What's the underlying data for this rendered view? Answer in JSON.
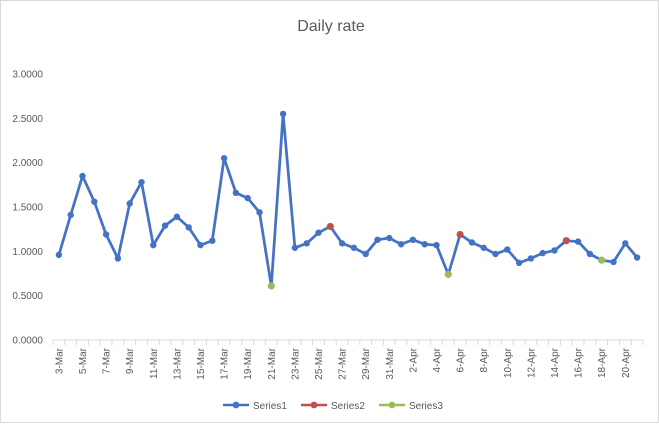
{
  "chart_data": {
    "type": "line",
    "title": "Daily rate",
    "xlabel": "",
    "ylabel": "",
    "ylim": [
      0,
      3
    ],
    "y_ticks": [
      "0.0000",
      "0.5000",
      "1.0000",
      "1.5000",
      "2.0000",
      "2.5000",
      "3.0000"
    ],
    "grid": false,
    "legend_position": "bottom",
    "categories": [
      "3-Mar",
      "4-Mar",
      "5-Mar",
      "6-Mar",
      "7-Mar",
      "8-Mar",
      "9-Mar",
      "10-Mar",
      "11-Mar",
      "12-Mar",
      "13-Mar",
      "14-Mar",
      "15-Mar",
      "16-Mar",
      "17-Mar",
      "18-Mar",
      "19-Mar",
      "20-Mar",
      "21-Mar",
      "22-Mar",
      "23-Mar",
      "24-Mar",
      "25-Mar",
      "26-Mar",
      "27-Mar",
      "28-Mar",
      "29-Mar",
      "30-Mar",
      "31-Mar",
      "1-Apr",
      "2-Apr",
      "3-Apr",
      "4-Apr",
      "5-Apr",
      "6-Apr",
      "7-Apr",
      "8-Apr",
      "9-Apr",
      "10-Apr",
      "11-Apr",
      "12-Apr",
      "13-Apr",
      "14-Apr",
      "15-Apr",
      "16-Apr",
      "17-Apr",
      "18-Apr",
      "19-Apr",
      "20-Apr",
      "21-Apr"
    ],
    "category_labels_shown": [
      "3-Mar",
      "5-Mar",
      "7-Mar",
      "9-Mar",
      "11-Mar",
      "13-Mar",
      "15-Mar",
      "17-Mar",
      "19-Mar",
      "21-Mar",
      "23-Mar",
      "25-Mar",
      "27-Mar",
      "29-Mar",
      "31-Mar",
      "2-Apr",
      "4-Apr",
      "6-Apr",
      "8-Apr",
      "10-Apr",
      "12-Apr",
      "14-Apr",
      "16-Apr",
      "18-Apr",
      "20-Apr"
    ],
    "series": [
      {
        "name": "Series1",
        "color": "#4472c4",
        "values": [
          0.96,
          1.41,
          1.85,
          1.56,
          1.19,
          0.92,
          1.54,
          1.78,
          1.07,
          1.29,
          1.39,
          1.27,
          1.07,
          1.12,
          2.05,
          1.66,
          1.6,
          1.44,
          0.61,
          2.55,
          1.04,
          1.09,
          1.21,
          1.28,
          1.09,
          1.04,
          0.97,
          1.13,
          1.15,
          1.08,
          1.13,
          1.08,
          1.07,
          0.74,
          1.19,
          1.1,
          1.04,
          0.97,
          1.02,
          0.87,
          0.92,
          0.98,
          1.01,
          1.12,
          1.11,
          0.97,
          0.9,
          0.88,
          1.09,
          0.93
        ]
      },
      {
        "name": "Series2",
        "color": "#c0504d",
        "points": [
          {
            "x": "26-Mar",
            "y": 1.28
          },
          {
            "x": "6-Apr",
            "y": 1.19
          },
          {
            "x": "15-Apr",
            "y": 1.12
          }
        ]
      },
      {
        "name": "Series3",
        "color": "#9bbb59",
        "points": [
          {
            "x": "21-Mar",
            "y": 0.61
          },
          {
            "x": "5-Apr",
            "y": 0.74
          },
          {
            "x": "18-Apr",
            "y": 0.9
          }
        ]
      }
    ]
  }
}
